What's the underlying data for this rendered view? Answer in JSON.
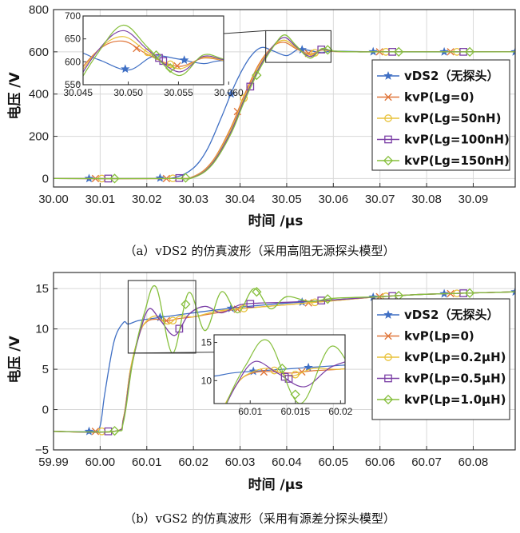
{
  "colors": {
    "blue": "#3f6fc4",
    "orange": "#e0763a",
    "yellow": "#e8c23a",
    "purple": "#7b3fa6",
    "green": "#86bf3c"
  },
  "chart_data": [
    {
      "type": "line",
      "caption": "（a）vDS2 的仿真波形（采用高阻无源探头模型）",
      "xlabel": "时间 /μs",
      "ylabel": "电压 /V",
      "xlim": [
        30.0,
        30.099
      ],
      "ylim": [
        -40,
        800
      ],
      "xticks": [
        "30.00",
        "30.01",
        "30.02",
        "30.03",
        "30.04",
        "30.05",
        "30.06",
        "30.07",
        "30.08",
        "30.09"
      ],
      "yticks": [
        "0",
        "200",
        "400",
        "600",
        "800"
      ],
      "grid": true,
      "legend_position": "right",
      "series": [
        {
          "name": "vDS2（无探头）",
          "color": "blue",
          "marker": "*",
          "x": [
            30.0,
            30.02,
            30.026,
            30.03,
            30.033,
            30.036,
            30.039,
            30.042,
            30.0445,
            30.047,
            30.05,
            30.0525,
            30.055,
            30.0575,
            30.06,
            30.07,
            30.099
          ],
          "y": [
            0,
            0,
            5,
            50,
            140,
            290,
            450,
            570,
            620,
            605,
            582,
            612,
            606,
            596,
            603,
            600,
            600
          ]
        },
        {
          "name": "kvP(Lg=0)",
          "color": "orange",
          "marker": "x",
          "x": [
            30.0,
            30.025,
            30.03,
            30.034,
            30.038,
            30.041,
            30.044,
            30.047,
            30.0495,
            30.052,
            30.055,
            30.0575,
            30.06,
            30.065,
            30.07,
            30.099
          ],
          "y": [
            0,
            0,
            10,
            80,
            240,
            400,
            540,
            625,
            645,
            615,
            590,
            608,
            602,
            600,
            600,
            600
          ]
        },
        {
          "name": "kvP(Lg=50nH)",
          "color": "yellow",
          "marker": "o",
          "x": [
            30.0,
            30.025,
            30.03,
            30.034,
            30.038,
            30.041,
            30.044,
            30.047,
            30.0495,
            30.052,
            30.055,
            30.0575,
            30.06,
            30.065,
            30.07,
            30.099
          ],
          "y": [
            0,
            0,
            8,
            75,
            230,
            390,
            530,
            625,
            655,
            620,
            585,
            610,
            602,
            600,
            600,
            600
          ]
        },
        {
          "name": "kvP(Lg=100nH)",
          "color": "purple",
          "marker": "s",
          "x": [
            30.0,
            30.025,
            30.03,
            30.034,
            30.038,
            30.041,
            30.044,
            30.047,
            30.0495,
            30.052,
            30.055,
            30.0575,
            30.06,
            30.065,
            30.07,
            30.099
          ],
          "y": [
            0,
            0,
            6,
            70,
            220,
            380,
            520,
            625,
            668,
            625,
            578,
            612,
            603,
            600,
            600,
            600
          ]
        },
        {
          "name": "kvP(Lg=150nH)",
          "color": "green",
          "marker": "d",
          "x": [
            30.0,
            30.025,
            30.03,
            30.034,
            30.038,
            30.041,
            30.044,
            30.047,
            30.0495,
            30.052,
            30.055,
            30.0575,
            30.06,
            30.065,
            30.07,
            30.099
          ],
          "y": [
            0,
            0,
            5,
            65,
            210,
            370,
            510,
            620,
            680,
            630,
            570,
            615,
            604,
            600,
            600,
            600
          ]
        }
      ],
      "inset": {
        "xlim": [
          30.0455,
          30.0595
        ],
        "ylim": [
          550,
          700
        ],
        "xticks": [
          "30.045",
          "30.050",
          "30.055",
          "30.060"
        ],
        "yticks": [
          "550",
          "600",
          "650",
          "700"
        ]
      }
    },
    {
      "type": "line",
      "caption": "（b）vGS2 的仿真波形（采用有源差分探头模型）",
      "xlabel": "时间 /μs",
      "ylabel": "电压 /V",
      "xlim": [
        59.99,
        60.089
      ],
      "ylim": [
        -5,
        17
      ],
      "xticks": [
        "59.99",
        "60.00",
        "60.01",
        "60.02",
        "60.03",
        "60.04",
        "60.05",
        "60.06",
        "60.07",
        "60.08"
      ],
      "yticks": [
        "−5",
        "0",
        "5",
        "10",
        "15"
      ],
      "grid": true,
      "legend_position": "right",
      "series": [
        {
          "name": "vDS2（无探头）",
          "color": "blue",
          "marker": "*",
          "x": [
            59.99,
            59.9985,
            60.0,
            60.001,
            60.003,
            60.005,
            60.006,
            60.008,
            60.01,
            60.015,
            60.02,
            60.03,
            60.04,
            60.05,
            60.06,
            60.07,
            60.089
          ],
          "y": [
            -2.7,
            -2.7,
            -2.0,
            2.0,
            8.5,
            10.8,
            10.6,
            11.0,
            11.2,
            11.6,
            12.0,
            12.7,
            13.2,
            13.6,
            14.0,
            14.3,
            14.6
          ]
        },
        {
          "name": "kvP(Lp=0)",
          "color": "orange",
          "marker": "x",
          "x": [
            59.99,
            60.003,
            60.005,
            60.0065,
            60.0085,
            60.01,
            60.012,
            60.0145,
            60.017,
            60.02,
            60.025,
            60.03,
            60.04,
            60.05,
            60.06,
            60.07,
            60.089
          ],
          "y": [
            -2.7,
            -2.7,
            -1.0,
            5.0,
            9.5,
            10.9,
            11.2,
            11.0,
            11.3,
            11.5,
            12.0,
            12.5,
            13.0,
            13.5,
            14.0,
            14.3,
            14.6
          ]
        },
        {
          "name": "kvP(Lp=0.2μH)",
          "color": "yellow",
          "marker": "o",
          "x": [
            59.99,
            60.003,
            60.005,
            60.0065,
            60.0085,
            60.01,
            60.012,
            60.0145,
            60.017,
            60.02,
            60.025,
            60.03,
            60.04,
            60.05,
            60.06,
            60.07,
            60.089
          ],
          "y": [
            -2.7,
            -2.7,
            -1.0,
            5.0,
            9.5,
            11.0,
            11.6,
            10.6,
            11.6,
            11.5,
            12.2,
            12.5,
            13.0,
            13.5,
            14.0,
            14.3,
            14.6
          ]
        },
        {
          "name": "kvP(Lp=0.5μH)",
          "color": "purple",
          "marker": "s",
          "x": [
            59.99,
            60.003,
            60.005,
            60.0065,
            60.0085,
            60.0105,
            60.013,
            60.016,
            60.019,
            60.0225,
            60.026,
            60.03,
            60.034,
            60.04,
            60.05,
            60.06,
            60.07,
            60.089
          ],
          "y": [
            -2.7,
            -2.7,
            -1.2,
            4.5,
            9.5,
            12.5,
            11.0,
            9.2,
            11.8,
            12.8,
            12.0,
            13.0,
            13.2,
            13.3,
            13.6,
            14.0,
            14.3,
            14.6
          ]
        },
        {
          "name": "kvP(Lp=1.0μH)",
          "color": "green",
          "marker": "d",
          "x": [
            59.99,
            60.003,
            60.005,
            60.007,
            60.0095,
            60.012,
            60.0155,
            60.019,
            60.0225,
            60.026,
            60.0295,
            60.033,
            60.0365,
            60.04,
            60.045,
            60.05,
            60.06,
            60.07,
            60.089
          ],
          "y": [
            -2.7,
            -2.7,
            -1.5,
            6.0,
            12.0,
            15.2,
            7.0,
            14.5,
            9.8,
            14.6,
            12.0,
            15.0,
            12.5,
            14.0,
            13.4,
            13.8,
            14.0,
            14.3,
            14.6
          ]
        }
      ],
      "inset": {
        "xlim": [
          60.006,
          60.0205
        ],
        "ylim": [
          7,
          16
        ],
        "xticks": [
          "60.01",
          "60.015",
          "60.02"
        ],
        "yticks": [
          "10",
          "15"
        ]
      }
    }
  ],
  "legend_labels": [
    [
      "vDS2（无探头）",
      "kvP(Lg=0)",
      "kvP(Lg=50nH)",
      "kvP(Lg=100nH)",
      "kvP(Lg=150nH)"
    ],
    [
      "vDS2（无探头）",
      "kvP(Lp=0)",
      "kvP(Lp=0.2μH)",
      "kvP(Lp=0.5μH)",
      "kvP(Lp=1.0μH)"
    ]
  ]
}
